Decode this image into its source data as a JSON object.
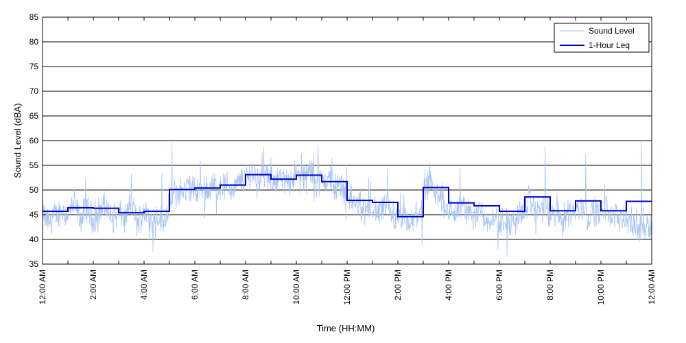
{
  "chart_data": {
    "type": "line",
    "xlabel": "Time (HH:MM)",
    "ylabel": "Sound Level (dBA)",
    "xlim": [
      0,
      24
    ],
    "ylim": [
      35,
      85
    ],
    "yticks": [
      35,
      40,
      45,
      50,
      55,
      60,
      65,
      70,
      75,
      80,
      85
    ],
    "xticks": [
      0,
      2,
      4,
      6,
      8,
      10,
      12,
      14,
      16,
      18,
      20,
      22,
      24
    ],
    "xtick_labels": [
      "12:00 AM",
      "2:00 AM",
      "4:00 AM",
      "6:00 AM",
      "8:00 AM",
      "10:00 AM",
      "12:00 PM",
      "2:00 PM",
      "4:00 PM",
      "6:00 PM",
      "8:00 PM",
      "10:00 PM",
      "12:00 AM"
    ],
    "grid": "horizontal",
    "legend_position": "top-right",
    "series": [
      {
        "name": "Sound Level",
        "color": "#a9c4f2",
        "x_units": "hours",
        "values": [
          [
            0.0,
            45.0
          ],
          [
            0.25,
            43.5
          ],
          [
            0.5,
            44.5
          ],
          [
            0.75,
            46.0
          ],
          [
            1.0,
            45.0
          ],
          [
            1.25,
            47.0
          ],
          [
            1.5,
            44.0
          ],
          [
            1.75,
            46.5
          ],
          [
            2.0,
            44.0
          ],
          [
            2.25,
            46.0
          ],
          [
            2.5,
            47.0
          ],
          [
            2.75,
            44.0
          ],
          [
            3.0,
            45.5
          ],
          [
            3.25,
            44.0
          ],
          [
            3.5,
            47.5
          ],
          [
            3.75,
            43.0
          ],
          [
            4.0,
            46.0
          ],
          [
            4.25,
            44.0
          ],
          [
            4.5,
            45.0
          ],
          [
            4.75,
            43.5
          ],
          [
            5.0,
            47.5
          ],
          [
            5.25,
            49.0
          ],
          [
            5.5,
            50.0
          ],
          [
            5.75,
            50.5
          ],
          [
            6.0,
            49.5
          ],
          [
            6.25,
            50.5
          ],
          [
            6.5,
            50.0
          ],
          [
            6.75,
            51.0
          ],
          [
            7.0,
            50.5
          ],
          [
            7.25,
            51.0
          ],
          [
            7.5,
            50.0
          ],
          [
            7.75,
            51.5
          ],
          [
            8.0,
            52.0
          ],
          [
            8.25,
            53.5
          ],
          [
            8.5,
            52.5
          ],
          [
            8.75,
            53.0
          ],
          [
            9.0,
            52.0
          ],
          [
            9.25,
            52.5
          ],
          [
            9.5,
            51.5
          ],
          [
            9.75,
            52.5
          ],
          [
            10.0,
            53.0
          ],
          [
            10.25,
            52.0
          ],
          [
            10.5,
            54.0
          ],
          [
            10.75,
            52.5
          ],
          [
            11.0,
            51.5
          ],
          [
            11.25,
            52.5
          ],
          [
            11.5,
            50.5
          ],
          [
            11.75,
            51.0
          ],
          [
            12.0,
            49.5
          ],
          [
            12.25,
            47.5
          ],
          [
            12.5,
            46.5
          ],
          [
            12.75,
            45.5
          ],
          [
            13.0,
            46.5
          ],
          [
            13.25,
            45.0
          ],
          [
            13.5,
            47.0
          ],
          [
            13.75,
            44.5
          ],
          [
            14.0,
            43.5
          ],
          [
            14.25,
            44.5
          ],
          [
            14.5,
            42.5
          ],
          [
            14.75,
            45.0
          ],
          [
            15.0,
            48.0
          ],
          [
            15.25,
            51.0
          ],
          [
            15.5,
            49.0
          ],
          [
            15.75,
            48.0
          ],
          [
            16.0,
            46.0
          ],
          [
            16.25,
            45.0
          ],
          [
            16.5,
            47.0
          ],
          [
            16.75,
            45.5
          ],
          [
            17.0,
            44.5
          ],
          [
            17.25,
            46.5
          ],
          [
            17.5,
            43.5
          ],
          [
            17.75,
            45.0
          ],
          [
            18.0,
            43.0
          ],
          [
            18.25,
            44.5
          ],
          [
            18.5,
            42.5
          ],
          [
            18.75,
            45.0
          ],
          [
            19.0,
            46.0
          ],
          [
            19.25,
            47.5
          ],
          [
            19.5,
            45.5
          ],
          [
            19.75,
            47.0
          ],
          [
            20.0,
            44.5
          ],
          [
            20.25,
            45.5
          ],
          [
            20.5,
            43.5
          ],
          [
            20.75,
            46.0
          ],
          [
            21.0,
            45.5
          ],
          [
            21.25,
            47.0
          ],
          [
            21.5,
            44.5
          ],
          [
            21.75,
            46.0
          ],
          [
            22.0,
            45.0
          ],
          [
            22.25,
            46.5
          ],
          [
            22.5,
            44.0
          ],
          [
            22.75,
            45.0
          ],
          [
            23.0,
            44.5
          ],
          [
            23.25,
            43.0
          ],
          [
            23.5,
            42.0
          ],
          [
            23.75,
            43.5
          ],
          [
            24.0,
            42.5
          ]
        ],
        "spikes": [
          [
            5.1,
            59.5
          ],
          [
            4.7,
            53.5
          ],
          [
            3.5,
            53.2
          ],
          [
            1.7,
            52.5
          ],
          [
            8.25,
            55.5
          ],
          [
            10.2,
            57.5
          ],
          [
            10.85,
            59.2
          ],
          [
            11.4,
            56.5
          ],
          [
            13.6,
            54.5
          ],
          [
            15.25,
            55.5
          ],
          [
            14.95,
            38.5
          ],
          [
            18.3,
            36.5
          ],
          [
            17.95,
            38.0
          ],
          [
            19.8,
            59.0
          ],
          [
            21.4,
            57.5
          ],
          [
            23.6,
            60.0
          ],
          [
            23.7,
            40.0
          ],
          [
            4.2,
            39.8
          ],
          [
            16.45,
            54.5
          ],
          [
            12.85,
            52.5
          ]
        ]
      },
      {
        "name": "1-Hour Leq",
        "color": "#0000cc",
        "type": "step",
        "hourly_values": [
          45.7,
          46.4,
          46.3,
          45.4,
          45.7,
          50.1,
          50.4,
          51.0,
          53.1,
          52.2,
          53.0,
          51.7,
          47.9,
          47.5,
          44.6,
          50.5,
          47.4,
          46.8,
          45.7,
          48.6,
          45.8,
          47.8,
          45.8,
          47.7
        ]
      }
    ]
  }
}
